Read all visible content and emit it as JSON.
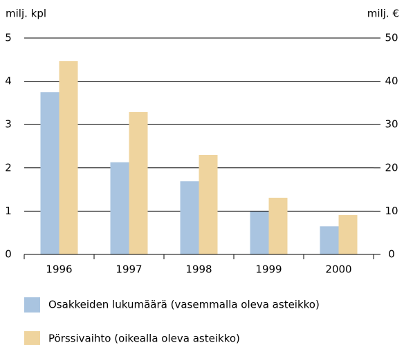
{
  "chart_data": {
    "type": "bar",
    "ylabel": "milj. kpl",
    "y2label": "milj. €",
    "categories": [
      "1996",
      "1997",
      "1998",
      "1999",
      "2000"
    ],
    "series": [
      {
        "name": "Osakkeiden lukumäärä (vasemmalla oleva asteikko)",
        "color": "#a9c4e0",
        "axis": "y",
        "values": [
          3.75,
          2.13,
          1.69,
          0.99,
          0.65
        ]
      },
      {
        "name": "Pörssivaihto (oikealla oleva asteikko)",
        "color": "#efd49e",
        "axis": "y2",
        "values": [
          44.7,
          32.9,
          23,
          13.1,
          9.1
        ]
      }
    ],
    "ylim": [
      0,
      5
    ],
    "yticks": [
      0,
      1,
      2,
      3,
      4,
      5
    ],
    "y2lim": [
      0,
      50
    ],
    "y2ticks": [
      0,
      10,
      20,
      30,
      40,
      50
    ],
    "grid": true
  }
}
